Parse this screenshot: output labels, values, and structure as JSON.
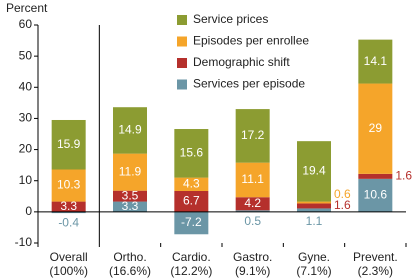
{
  "chart_data": {
    "type": "stacked-bar",
    "y_label": "Percent",
    "categories": [
      [
        "Overall",
        "(100%)"
      ],
      [
        "Ortho.",
        "(16.6%)"
      ],
      [
        "Cardio.",
        "(12.2%)"
      ],
      [
        "Gastro.",
        "(9.1%)"
      ],
      [
        "Gyne.",
        "(7.1%)"
      ],
      [
        "Prevent.",
        "(2.3%)"
      ]
    ],
    "series": [
      {
        "name": "Service prices",
        "color": "#8c9c32",
        "values": [
          15.9,
          14.9,
          15.6,
          17.2,
          19.4,
          14.1
        ]
      },
      {
        "name": "Episodes per enrollee",
        "color": "#f5a52a",
        "values": [
          10.3,
          11.9,
          4.3,
          11.1,
          0.6,
          29.0
        ]
      },
      {
        "name": "Demographic shift",
        "color": "#b5302c",
        "values": [
          3.3,
          3.5,
          6.7,
          4.2,
          1.6,
          1.6
        ]
      },
      {
        "name": "Services per episode",
        "color": "#6b96a6",
        "values": [
          -0.4,
          3.3,
          -7.2,
          0.5,
          1.1,
          10.6
        ]
      }
    ],
    "ylim": [
      -10,
      60
    ],
    "yticks": [
      -10,
      0,
      10,
      20,
      30,
      40,
      50,
      60
    ]
  }
}
